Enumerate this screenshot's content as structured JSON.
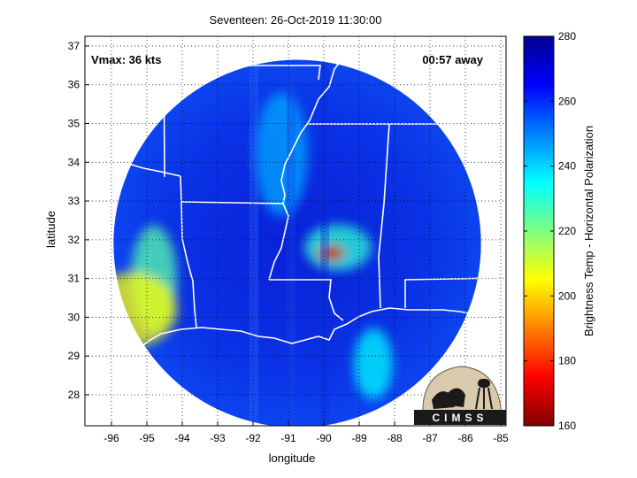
{
  "chart_data": {
    "type": "heatmap",
    "title": "Seventeen: 26-Oct-2019 11:30:00",
    "xlabel": "longitude",
    "ylabel": "latitude",
    "xlim": [
      -96.75,
      -84.85
    ],
    "ylim": [
      27.2,
      37.25
    ],
    "x_ticks": [
      -96,
      -95,
      -94,
      -93,
      -92,
      -91,
      -90,
      -89,
      -88,
      -87,
      -86,
      -85
    ],
    "y_ticks": [
      28,
      29,
      30,
      31,
      32,
      33,
      34,
      35,
      36,
      37
    ],
    "grid": "dotted",
    "annotations": {
      "vmax": "Vmax: 36 kts",
      "time_away": "00:57 away"
    },
    "colorbar": {
      "label": "Brightness Temp - Horizontal Polarization",
      "range": [
        160,
        280
      ],
      "ticks": [
        160,
        180,
        200,
        220,
        240,
        260,
        280
      ],
      "colors": [
        "#7f0000",
        "#ff0000",
        "#ff8000",
        "#ffff00",
        "#80ff80",
        "#00ffff",
        "#0080ff",
        "#0000ff",
        "#00008f"
      ]
    },
    "swath": {
      "center": [
        -90.75,
        31.9
      ],
      "radius_deg": 5.3,
      "background_temp": 268
    },
    "features": [
      {
        "name": "storm core",
        "lon": -89.8,
        "lat": 31.65,
        "temp": 168
      },
      {
        "name": "storm rainband",
        "lon": -89.6,
        "lat": 31.8,
        "temp": 230
      },
      {
        "name": "texas coast warm area",
        "lon": -95.4,
        "lat": 30.2,
        "temp": 205
      },
      {
        "name": "east texas band",
        "lon": -94.8,
        "lat": 31.0,
        "temp": 225
      },
      {
        "name": "mississippi valley band",
        "lon": -91.2,
        "lat": 34.2,
        "temp": 245
      },
      {
        "name": "gulf band",
        "lon": -88.6,
        "lat": 28.8,
        "temp": 235
      }
    ],
    "logo": "CIMSS"
  }
}
